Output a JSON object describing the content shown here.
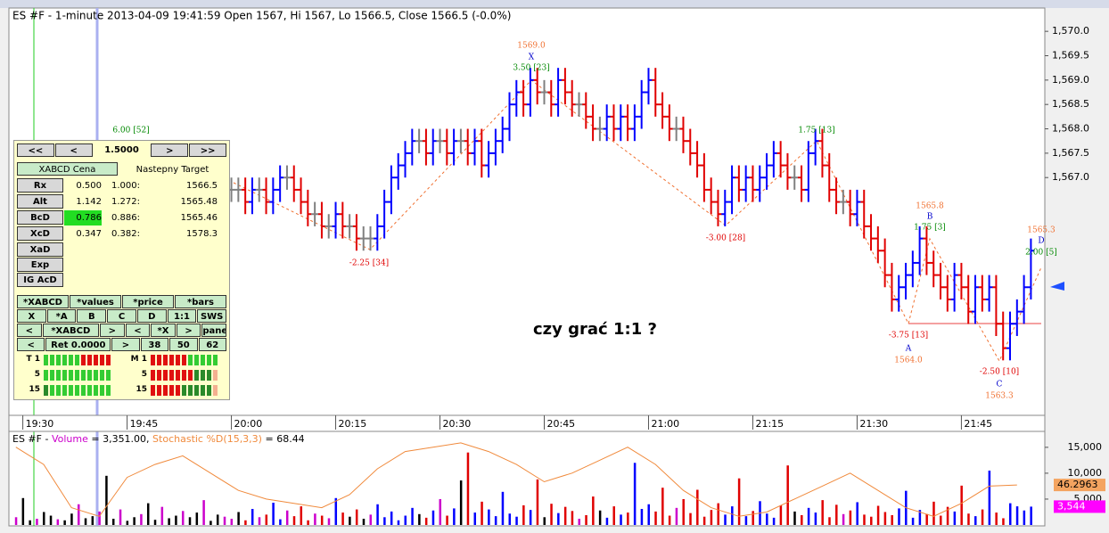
{
  "chart_data": [
    {
      "type": "ohlc",
      "title": "ES #F - 1-minute 2013-04-09 19:41:59 Open 1567, Hi 1567, Lo 1566.5, Close 1566.5 (-0.0%)",
      "caption": "czy grać 1:1 ?",
      "xlim": [
        -1,
        148
      ],
      "xticks": [
        {
          "value": 1,
          "label": "19:30"
        },
        {
          "value": 16,
          "label": "19:45"
        },
        {
          "value": 31,
          "label": "20:00"
        },
        {
          "value": 46,
          "label": "20:15"
        },
        {
          "value": 61,
          "label": "20:30"
        },
        {
          "value": 76,
          "label": "20:45"
        },
        {
          "value": 91,
          "label": "21:00"
        },
        {
          "value": 106,
          "label": "21:15"
        },
        {
          "value": 121,
          "label": "21:30"
        },
        {
          "value": 136,
          "label": "21:45"
        }
      ],
      "ylim": [
        1562.14,
        1570.46
      ],
      "yticks": [
        {
          "value": 1567.0,
          "label": "1,567.0"
        },
        {
          "value": 1567.5,
          "label": "1,567.5"
        },
        {
          "value": 1568.0,
          "label": "1,568.0"
        },
        {
          "value": 1568.5,
          "label": "1,568.5"
        },
        {
          "value": 1569.0,
          "label": "1,569.0"
        },
        {
          "value": 1569.5,
          "label": "1,569.5"
        },
        {
          "value": 1570.0,
          "label": "1,570.0"
        }
      ],
      "series": [
        {
          "name": "ES #F",
          "colors": {
            "up": "#0000ff",
            "down": "#e00000",
            "flat": "#808080"
          },
          "values": [
            null,
            null,
            null,
            null,
            null,
            null,
            null,
            null,
            null,
            null,
            null,
            null,
            null,
            null,
            null,
            null,
            null,
            null,
            null,
            null,
            null,
            null,
            null,
            null,
            null,
            null,
            null,
            null,
            null,
            null,
            null,
            1566.75,
            1566.75,
            1566.5,
            1566.75,
            1566.75,
            1566.5,
            1566.75,
            1567.0,
            1567.0,
            1566.75,
            1566.5,
            1566.25,
            1566.25,
            1566.0,
            1566.0,
            1566.25,
            1566.0,
            1566.0,
            1565.75,
            1565.75,
            1565.75,
            1566.0,
            1566.5,
            1567.0,
            1567.25,
            1567.5,
            1567.75,
            1567.75,
            1567.5,
            1567.75,
            1567.75,
            1567.5,
            1567.75,
            1567.75,
            1567.5,
            1567.75,
            1567.25,
            1567.5,
            1567.75,
            1568.0,
            1568.5,
            1568.75,
            1568.5,
            1569.0,
            1568.75,
            1568.75,
            1568.5,
            1569.0,
            1568.75,
            1568.5,
            1568.5,
            1568.25,
            1568.0,
            1568.0,
            1568.25,
            1568.0,
            1568.25,
            1568.0,
            1568.25,
            1568.75,
            1569.0,
            1568.5,
            1568.25,
            1568.0,
            1568.0,
            1567.75,
            1567.5,
            1567.25,
            1566.75,
            1566.5,
            1566.25,
            1566.5,
            1567.0,
            1566.75,
            1567.0,
            1566.75,
            1567.0,
            1567.25,
            1567.5,
            1567.25,
            1567.0,
            1567.0,
            1566.75,
            1567.5,
            1567.75,
            1567.25,
            1566.75,
            1566.5,
            1566.5,
            1566.25,
            1566.5,
            1566.0,
            1565.75,
            1565.5,
            1565.0,
            1564.5,
            1564.75,
            1565.0,
            1565.25,
            1565.75,
            1565.25,
            1565.0,
            1564.75,
            1564.5,
            1565.0,
            1564.75,
            1564.25,
            1564.75,
            1564.5,
            1564.75,
            1564.0,
            1563.5,
            1564.0,
            1564.25,
            1564.75,
            1565.5
          ]
        }
      ],
      "annotations": [
        "1569.0",
        "X",
        "3.50 [23]",
        "6.00 [52]",
        "-2.25 [34]",
        "-3.00 [28]",
        "1.75 [13]",
        "1565.8",
        "B",
        "1.75 [3]",
        "1565.3",
        "D",
        "2.00 [5]",
        "-3.75 [13]",
        "A",
        "1564.0",
        "-2.50 [10]",
        "C",
        "1563.3"
      ]
    },
    {
      "type": "bar",
      "header_prefix": "ES #F - ",
      "volume_readout": " = 3,351.00, ",
      "stoch_readout": " = 68.44",
      "xlim": [
        -1,
        148
      ],
      "ylim": [
        0,
        16700
      ],
      "yticks": [
        {
          "value": 5000,
          "label": "5,000"
        },
        {
          "value": 10000,
          "label": "10,000"
        },
        {
          "value": 15000,
          "label": "15,000"
        }
      ],
      "y2lim": [
        0,
        100
      ],
      "series": [
        {
          "name": "Volume",
          "color": "#cc00cc",
          "values": [
            1500,
            5200,
            900,
            1200,
            2500,
            1800,
            1100,
            900,
            2200,
            4000,
            1300,
            1700,
            2600,
            9500,
            1200,
            3000,
            800,
            1500,
            2100,
            4200,
            1000,
            3500,
            1300,
            1800,
            2700,
            1500,
            2400,
            4800,
            800,
            2000,
            1600,
            1200,
            2500,
            900,
            3100,
            1500,
            2000,
            4300,
            1100,
            2800,
            1700,
            3600,
            900,
            2200,
            1800,
            1300,
            5200,
            2400,
            1600,
            3000,
            1200,
            2000,
            4000,
            1500,
            2600,
            900,
            1800,
            3300,
            2100,
            1400,
            2800,
            5000,
            1800,
            3200,
            8600,
            14000,
            2400,
            4500,
            3000,
            1700,
            6400,
            2200,
            1600,
            3800,
            2900,
            8800,
            1500,
            4100,
            2300,
            3500,
            2700,
            1200,
            1900,
            5500,
            2800,
            1400,
            3600,
            2000,
            2400,
            12000,
            3100,
            4000,
            2600,
            7200,
            1800,
            3300,
            5000,
            2300,
            6800,
            1600,
            2900,
            4200,
            2000,
            3600,
            9000,
            1700,
            2700,
            4600,
            2200,
            1400,
            3800,
            11500,
            2600,
            1900,
            3300,
            2400,
            4800,
            1500,
            3900,
            2100,
            2800,
            4400,
            2000,
            1600,
            3700,
            2500,
            1900,
            3200,
            6600,
            1400,
            2900,
            2100,
            4500,
            1800,
            3500,
            2600,
            7600,
            2200,
            1700,
            3000,
            10500,
            2400,
            1300,
            4200,
            3600,
            2800,
            3544
          ]
        },
        {
          "name": "Stochastic %D(15,3,3)",
          "axis": "y2",
          "color": "#f08a3c",
          "x": [
            0,
            4,
            8,
            12,
            16,
            20,
            24,
            28,
            32,
            36,
            40,
            44,
            48,
            52,
            56,
            60,
            64,
            68,
            72,
            76,
            80,
            84,
            88,
            92,
            96,
            100,
            104,
            108,
            112,
            116,
            120,
            124,
            128,
            132,
            136,
            140,
            144
          ],
          "values": [
            90,
            70,
            20,
            10,
            55,
            70,
            80,
            60,
            40,
            30,
            25,
            20,
            35,
            65,
            85,
            90,
            95,
            85,
            70,
            50,
            60,
            75,
            90,
            70,
            40,
            20,
            10,
            15,
            30,
            45,
            60,
            40,
            20,
            10,
            25,
            45,
            46.2963
          ]
        }
      ],
      "tags": [
        {
          "value": 3544,
          "label": "3,544",
          "color": "#ff00ff"
        },
        {
          "value": 46.2963,
          "label": "46.2963",
          "color": "#f4a460"
        }
      ]
    }
  ],
  "panel": {
    "nav": [
      "<<",
      "<",
      "1.5000",
      ">",
      ">>"
    ],
    "header": [
      "XABCD Cena",
      "Nastepny Target"
    ],
    "rows": [
      [
        "Rx",
        "0.500",
        "1.000:",
        "1566.5"
      ],
      [
        "Alt",
        "1.142",
        "1.272:",
        "1565.48"
      ],
      [
        "BcD",
        "0.786",
        "0.886:",
        "1565.46"
      ],
      [
        "XcD",
        "0.347",
        "0.382:",
        "1578.3"
      ],
      [
        "XaD"
      ],
      [
        "Exp"
      ],
      [
        "IG AcD"
      ]
    ],
    "buttons": [
      [
        "*XABCD",
        "*values",
        "*price",
        "*bars"
      ],
      [
        "X",
        "*A",
        "B",
        "C",
        "D",
        "1:1",
        "SWS"
      ],
      [
        "<",
        "*XABCD",
        ">",
        "<",
        "*X",
        ">",
        "panel"
      ],
      [
        "<",
        "Ret 0.0000",
        ">",
        "38",
        "50",
        "62"
      ]
    ],
    "meters": [
      "T 1",
      "5",
      "15",
      "M 1",
      "5",
      "15"
    ]
  }
}
